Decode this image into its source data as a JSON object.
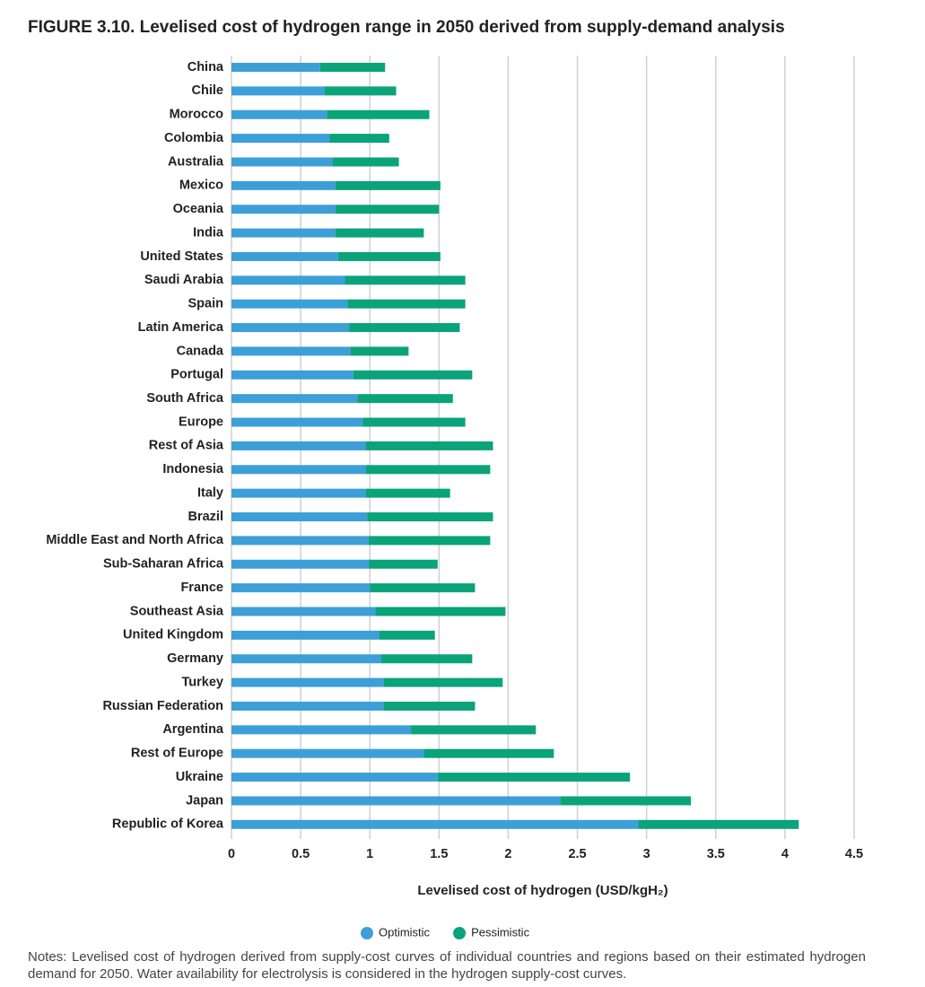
{
  "chart_data": {
    "type": "range-bar",
    "title": "FIGURE 3.10. Levelised cost of hydrogen range in 2050 derived from supply-demand analysis",
    "x_label": "Levelised cost of hydrogen (USD/kgH₂)",
    "categories": [
      "China",
      "Chile",
      "Morocco",
      "Colombia",
      "Australia",
      "Mexico",
      "Oceania",
      "India",
      "United States",
      "Saudi Arabia",
      "Spain",
      "Latin America",
      "Canada",
      "Portugal",
      "South Africa",
      "Europe",
      "Rest of Asia",
      "Indonesia",
      "Italy",
      "Brazil",
      "Middle East and North Africa",
      "Sub-Saharan Africa",
      "France",
      "Southeast Asia",
      "United Kingdom",
      "Germany",
      "Turkey",
      "Russian Federation",
      "Argentina",
      "Rest of Europe",
      "Ukraine",
      "Japan",
      "Republic of Korea"
    ],
    "series": [
      {
        "name": "Optimistic",
        "color": "#3d9fd8",
        "values": [
          0.64,
          0.67,
          0.69,
          0.71,
          0.73,
          0.75,
          0.75,
          0.75,
          0.77,
          0.82,
          0.84,
          0.85,
          0.86,
          0.88,
          0.91,
          0.95,
          0.97,
          0.97,
          0.97,
          0.98,
          0.99,
          0.99,
          1.0,
          1.04,
          1.07,
          1.08,
          1.1,
          1.1,
          1.3,
          1.39,
          1.49,
          2.38,
          2.94
        ]
      },
      {
        "name": "Pessimistic",
        "color": "#0aa37a",
        "values": [
          1.11,
          1.19,
          1.43,
          1.14,
          1.21,
          1.51,
          1.5,
          1.39,
          1.51,
          1.69,
          1.69,
          1.65,
          1.28,
          1.74,
          1.6,
          1.69,
          1.89,
          1.87,
          1.58,
          1.89,
          1.87,
          1.49,
          1.76,
          1.98,
          1.47,
          1.74,
          1.96,
          1.76,
          2.2,
          2.33,
          2.88,
          3.32,
          4.1
        ]
      }
    ],
    "xlim": [
      0,
      4.5
    ],
    "xticks": [
      0,
      0.5,
      1,
      1.5,
      2,
      2.5,
      3,
      3.5,
      4,
      4.5
    ],
    "grid": true,
    "legend": "bottom",
    "notes": "Notes: Levelised cost of hydrogen derived from supply-cost curves of individual countries and regions based on their estimated hydrogen demand for 2050. Water availability for electrolysis is considered in the hydrogen supply-cost curves."
  }
}
